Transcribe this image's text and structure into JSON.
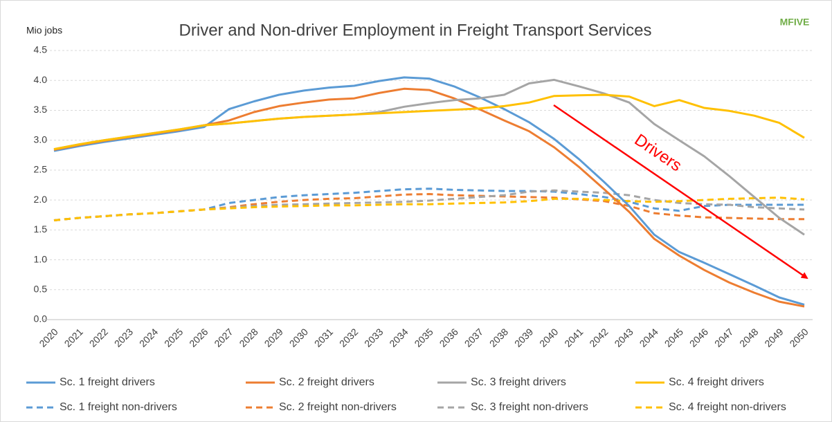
{
  "chart_data": {
    "type": "line",
    "title": "Driver and Non-driver Employment in Freight Transport Services",
    "y_label": "Mio jobs",
    "logo": "MFIVE",
    "annotation": "Drivers",
    "categories": [
      "2020",
      "2021",
      "2022",
      "2023",
      "2024",
      "2025",
      "2026",
      "2027",
      "2028",
      "2029",
      "2030",
      "2031",
      "2032",
      "2033",
      "2034",
      "2035",
      "2036",
      "2037",
      "2038",
      "2039",
      "2040",
      "2041",
      "2042",
      "2043",
      "2044",
      "2045",
      "2046",
      "2047",
      "2048",
      "2049",
      "2050"
    ],
    "ylim": [
      0,
      4.5
    ],
    "yticks": [
      {
        "value": 0,
        "label": "0.0"
      },
      {
        "value": 0.5,
        "label": "0.5"
      },
      {
        "value": 1,
        "label": "1.0"
      },
      {
        "value": 1.5,
        "label": "1.5"
      },
      {
        "value": 2,
        "label": "2.0"
      },
      {
        "value": 2.5,
        "label": "2.5"
      },
      {
        "value": 3,
        "label": "3.0"
      },
      {
        "value": 3.5,
        "label": "3.5"
      },
      {
        "value": 4,
        "label": "4.0"
      },
      {
        "value": 4.5,
        "label": "4.5"
      }
    ],
    "grid": true,
    "legend": "bottom",
    "series": [
      {
        "name": "Sc. 1 freight drivers",
        "color": "#5b9bd5",
        "dashed": false,
        "values": [
          2.82,
          2.9,
          2.97,
          3.03,
          3.09,
          3.15,
          3.22,
          3.52,
          3.65,
          3.76,
          3.83,
          3.88,
          3.91,
          3.99,
          4.05,
          4.03,
          3.9,
          3.72,
          3.52,
          3.3,
          3.02,
          2.68,
          2.3,
          1.9,
          1.42,
          1.13,
          0.95,
          0.76,
          0.57,
          0.37,
          0.25
        ]
      },
      {
        "name": "Sc. 2 freight drivers",
        "color": "#ed7d31",
        "dashed": false,
        "values": [
          2.84,
          2.92,
          2.99,
          3.05,
          3.11,
          3.17,
          3.25,
          3.33,
          3.47,
          3.57,
          3.63,
          3.68,
          3.7,
          3.79,
          3.86,
          3.84,
          3.7,
          3.52,
          3.33,
          3.15,
          2.88,
          2.55,
          2.18,
          1.8,
          1.35,
          1.07,
          0.83,
          0.62,
          0.45,
          0.3,
          0.22
        ]
      },
      {
        "name": "Sc. 3 freight drivers",
        "color": "#a5a5a5",
        "dashed": false,
        "values": [
          2.85,
          2.93,
          3.0,
          3.06,
          3.12,
          3.18,
          3.25,
          3.28,
          3.32,
          3.36,
          3.39,
          3.41,
          3.43,
          3.47,
          3.56,
          3.62,
          3.67,
          3.7,
          3.76,
          3.95,
          4.01,
          3.9,
          3.78,
          3.63,
          3.27,
          3.0,
          2.73,
          2.4,
          2.05,
          1.7,
          1.42
        ]
      },
      {
        "name": "Sc. 4 freight drivers",
        "color": "#ffc000",
        "dashed": false,
        "values": [
          2.85,
          2.93,
          3.0,
          3.06,
          3.12,
          3.18,
          3.25,
          3.28,
          3.32,
          3.36,
          3.39,
          3.41,
          3.43,
          3.45,
          3.47,
          3.49,
          3.51,
          3.53,
          3.57,
          3.63,
          3.74,
          3.75,
          3.76,
          3.73,
          3.57,
          3.67,
          3.54,
          3.49,
          3.41,
          3.29,
          3.04
        ]
      },
      {
        "name": "Sc. 1 freight non-drivers",
        "color": "#5b9bd5",
        "dashed": true,
        "values": [
          1.66,
          1.7,
          1.73,
          1.76,
          1.78,
          1.81,
          1.84,
          1.95,
          2.0,
          2.05,
          2.08,
          2.1,
          2.12,
          2.15,
          2.18,
          2.19,
          2.17,
          2.16,
          2.15,
          2.15,
          2.14,
          2.1,
          2.05,
          1.97,
          1.86,
          1.82,
          1.9,
          1.92,
          1.92,
          1.92,
          1.92
        ]
      },
      {
        "name": "Sc. 2 freight non-drivers",
        "color": "#ed7d31",
        "dashed": true,
        "values": [
          1.66,
          1.7,
          1.73,
          1.76,
          1.78,
          1.81,
          1.84,
          1.88,
          1.93,
          1.97,
          2.0,
          2.02,
          2.03,
          2.06,
          2.09,
          2.1,
          2.08,
          2.07,
          2.06,
          2.05,
          2.04,
          2.01,
          1.98,
          1.9,
          1.78,
          1.74,
          1.71,
          1.7,
          1.69,
          1.68,
          1.68
        ]
      },
      {
        "name": "Sc. 3 freight non-drivers",
        "color": "#a5a5a5",
        "dashed": true,
        "values": [
          1.66,
          1.7,
          1.73,
          1.76,
          1.78,
          1.81,
          1.84,
          1.87,
          1.9,
          1.92,
          1.93,
          1.94,
          1.95,
          1.96,
          1.97,
          1.99,
          2.02,
          2.05,
          2.08,
          2.14,
          2.16,
          2.14,
          2.12,
          2.08,
          2.0,
          1.95,
          1.93,
          1.92,
          1.88,
          1.86,
          1.84
        ]
      },
      {
        "name": "Sc. 4 freight non-drivers",
        "color": "#ffc000",
        "dashed": true,
        "values": [
          1.66,
          1.7,
          1.73,
          1.76,
          1.78,
          1.81,
          1.84,
          1.86,
          1.88,
          1.89,
          1.9,
          1.91,
          1.91,
          1.92,
          1.93,
          1.93,
          1.94,
          1.95,
          1.96,
          1.98,
          2.02,
          2.02,
          2.0,
          1.98,
          1.97,
          1.98,
          2.0,
          2.02,
          2.03,
          2.04,
          2.01
        ]
      }
    ]
  }
}
